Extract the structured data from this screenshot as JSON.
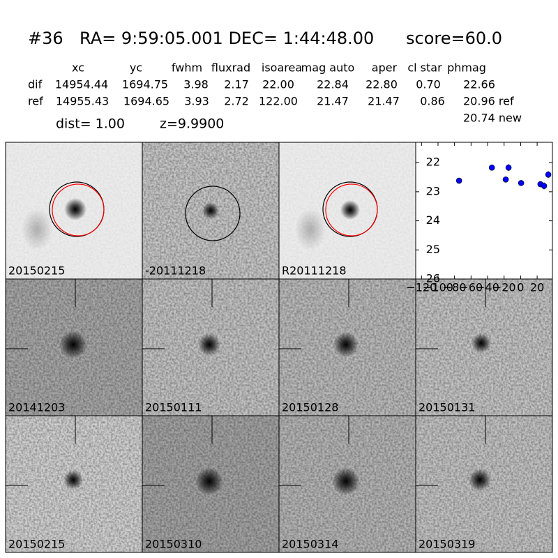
{
  "header": {
    "id": "#36",
    "coords": "RA= 9:59:05.001 DEC= 1:44:48.00",
    "score": "score=60.0"
  },
  "table": {
    "columns": [
      "xc",
      "yc",
      "fwhm",
      "fluxrad",
      "isoarea",
      "mag auto",
      "aper",
      "cl star",
      "phmag"
    ],
    "rows": [
      [
        "dif",
        "14954.44",
        "1694.75",
        "3.98",
        "2.17",
        "22.00",
        "22.84",
        "22.80",
        "0.70",
        "22.66"
      ],
      [
        "ref",
        "14955.43",
        "1694.65",
        "3.93",
        "2.72",
        "122.00",
        "21.47",
        "21.47",
        "0.86",
        "20.96 ref"
      ]
    ],
    "extra": "20.74 new",
    "dist": "dist=  1.00",
    "z": "z=9.9900"
  },
  "panels": [
    {
      "label": "20150215",
      "color": "#000000"
    },
    {
      "label": "-20111218",
      "color": "#000000"
    },
    {
      "label": "R20111218",
      "color": "#000000"
    },
    {
      "label": "20141203",
      "color": "#000000"
    },
    {
      "label": "20150111",
      "color": "#000000"
    },
    {
      "label": "20150128",
      "color": "#000000"
    },
    {
      "label": "20150131",
      "color": "#000000"
    },
    {
      "label": "20150215",
      "color": "#ff0000"
    },
    {
      "label": "20150310",
      "color": "#000000"
    },
    {
      "label": "20150314",
      "color": "#000000"
    },
    {
      "label": "20150319",
      "color": "#000000"
    }
  ],
  "chart_data": {
    "type": "scatter",
    "x": [
      -74.5,
      -34.8,
      -18,
      -14.6,
      0.6,
      24,
      28.4,
      33.5
    ],
    "series": [
      {
        "color": "#0000ff",
        "values": [
          22.62,
          22.17,
          22.58,
          22.17,
          22.7,
          22.74,
          22.8,
          22.41
        ],
        "errors": [
          0.1,
          0.06,
          0.1,
          0.12,
          0.1,
          0.1,
          0.12,
          0.12
        ]
      }
    ],
    "xlim": [
      -127,
      38.5
    ],
    "ylim": [
      26,
      21.3
    ],
    "xticks": [
      {
        "value": -120,
        "label": "−120"
      },
      {
        "value": -100,
        "label": "−100"
      },
      {
        "value": -80,
        "label": "−80"
      },
      {
        "value": -60,
        "label": "−60"
      },
      {
        "value": -40,
        "label": "−40"
      },
      {
        "value": -20,
        "label": "−20"
      },
      0,
      20
    ],
    "yticks": [
      22,
      23,
      24,
      25,
      26
    ]
  }
}
